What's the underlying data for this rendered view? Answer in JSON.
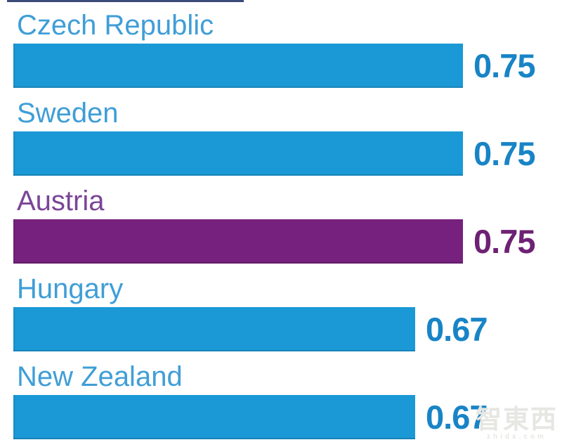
{
  "chart_data": {
    "type": "bar",
    "orientation": "horizontal",
    "categories": [
      "Czech Republic",
      "Sweden",
      "Austria",
      "Hungary",
      "New Zealand"
    ],
    "values": [
      0.75,
      0.75,
      0.75,
      0.67,
      0.67
    ],
    "value_labels": [
      "0.75",
      "0.75",
      "0.75",
      "0.67",
      "0.67"
    ],
    "highlight_index": 2,
    "title": "",
    "xlabel": "",
    "ylabel": "",
    "xlim": [
      0,
      0.92
    ],
    "grid": false,
    "legend": "none",
    "bar_style": "label above bar, bold value at bar end"
  },
  "colors": {
    "bar_blue": "#1b99d6",
    "bar_purple": "#75217d",
    "label_blue": "#3f9ed7",
    "label_purple": "#7a4597",
    "value_blue": "#1884c6",
    "value_purple": "#6e2174",
    "top_crop_line": "#2a3c6e",
    "watermark_gray": "#e6e6e2",
    "background": "#ffffff"
  },
  "watermark": {
    "logo": "智東西",
    "domain": "zhidx.com"
  }
}
